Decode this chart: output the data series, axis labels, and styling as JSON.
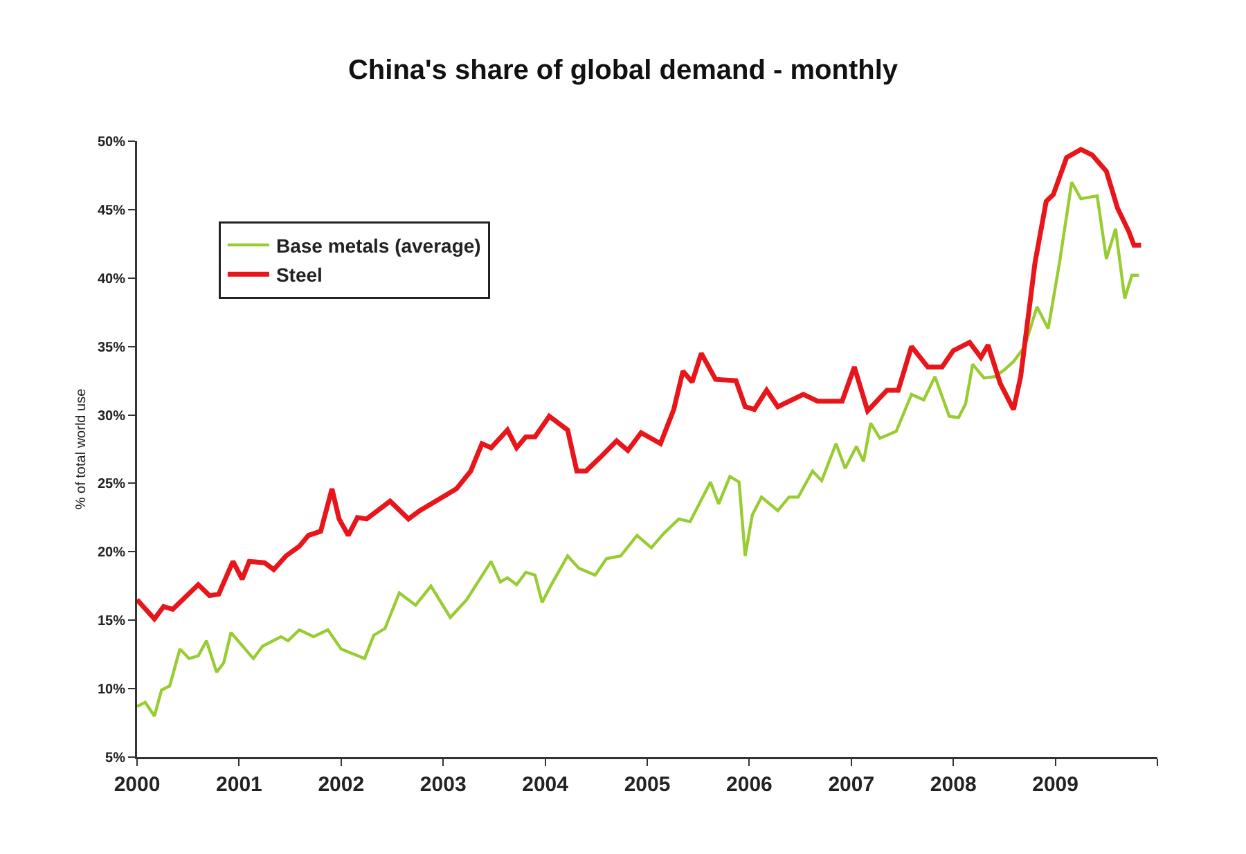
{
  "chart_data": {
    "type": "line",
    "title": "China's share of global demand - monthly",
    "ylabel": "% of total world use",
    "xlim": [
      2000,
      2010
    ],
    "xticks": [
      {
        "value": 2000,
        "label": "2000"
      },
      {
        "value": 2001,
        "label": "2001"
      },
      {
        "value": 2002,
        "label": "2002"
      },
      {
        "value": 2003,
        "label": "2003"
      },
      {
        "value": 2004,
        "label": "2004"
      },
      {
        "value": 2005,
        "label": "2005"
      },
      {
        "value": 2006,
        "label": "2006"
      },
      {
        "value": 2007,
        "label": "2007"
      },
      {
        "value": 2008,
        "label": "2008"
      },
      {
        "value": 2009,
        "label": "2009"
      },
      {
        "value": 2010,
        "label": null
      }
    ],
    "ylim": [
      5,
      50
    ],
    "yticks": [
      {
        "value": 5,
        "label": "5%"
      },
      {
        "value": 10,
        "label": "10%"
      },
      {
        "value": 15,
        "label": "15%"
      },
      {
        "value": 20,
        "label": "20%"
      },
      {
        "value": 25,
        "label": "25%"
      },
      {
        "value": 30,
        "label": "30%"
      },
      {
        "value": 35,
        "label": "35%"
      },
      {
        "value": 40,
        "label": "40%"
      },
      {
        "value": 45,
        "label": "45%"
      },
      {
        "value": 50,
        "label": "50%"
      }
    ],
    "grid": false,
    "legend": "top left",
    "series": [
      {
        "name": "Base metals (average)",
        "color": "#99cc33",
        "x": [
          2000.0,
          2000.08,
          2000.17,
          2000.24,
          2000.32,
          2000.42,
          2000.51,
          2000.6,
          2000.68,
          2000.78,
          2000.85,
          2000.92,
          2001.14,
          2001.23,
          2001.41,
          2001.48,
          2001.59,
          2001.73,
          2001.87,
          2002.0,
          2002.23,
          2002.32,
          2002.43,
          2002.57,
          2002.73,
          2002.88,
          2003.07,
          2003.23,
          2003.47,
          2003.56,
          2003.63,
          2003.72,
          2003.81,
          2003.9,
          2003.97,
          2004.06,
          2004.22,
          2004.33,
          2004.49,
          2004.6,
          2004.74,
          2004.9,
          2005.04,
          2005.17,
          2005.31,
          2005.42,
          2005.62,
          2005.7,
          2005.81,
          2005.9,
          2005.96,
          2006.03,
          2006.12,
          2006.28,
          2006.39,
          2006.48,
          2006.62,
          2006.71,
          2006.85,
          2006.94,
          2007.05,
          2007.12,
          2007.19,
          2007.28,
          2007.44,
          2007.59,
          2007.71,
          2007.82,
          2007.96,
          2008.05,
          2008.12,
          2008.19,
          2008.3,
          2008.41,
          2008.5,
          2008.59,
          2008.7,
          2008.82,
          2008.93,
          2009.04,
          2009.16,
          2009.25,
          2009.41,
          2009.5,
          2009.59,
          2009.68,
          2009.75,
          2009.82
        ],
        "values": [
          8.7,
          9.0,
          8.0,
          9.9,
          10.2,
          12.9,
          12.2,
          12.4,
          13.5,
          11.2,
          11.9,
          14.1,
          12.2,
          13.1,
          13.8,
          13.5,
          14.3,
          13.8,
          14.3,
          12.9,
          12.2,
          13.9,
          14.4,
          17.0,
          16.1,
          17.5,
          15.2,
          16.5,
          19.3,
          17.8,
          18.1,
          17.6,
          18.5,
          18.3,
          16.3,
          17.6,
          19.7,
          18.8,
          18.3,
          19.5,
          19.7,
          21.2,
          20.3,
          21.4,
          22.4,
          22.2,
          25.1,
          23.5,
          25.5,
          25.1,
          19.7,
          22.7,
          24.0,
          23.0,
          24.0,
          24.0,
          25.9,
          25.2,
          27.9,
          26.1,
          27.7,
          26.6,
          29.4,
          28.3,
          28.8,
          31.5,
          31.1,
          32.8,
          29.9,
          29.8,
          30.8,
          33.7,
          32.7,
          32.8,
          33.3,
          33.9,
          35.0,
          37.9,
          36.3,
          41.1,
          47.0,
          45.8,
          46.0,
          41.4,
          43.6,
          38.5,
          40.2,
          40.2
        ]
      },
      {
        "name": "Steel",
        "color": "#e8161b",
        "x": [
          2000.0,
          2000.17,
          2000.26,
          2000.35,
          2000.6,
          2000.71,
          2000.8,
          2000.94,
          2001.03,
          2001.1,
          2001.25,
          2001.34,
          2001.46,
          2001.59,
          2001.68,
          2001.8,
          2001.91,
          2001.98,
          2002.07,
          2002.16,
          2002.25,
          2002.48,
          2002.66,
          2002.77,
          2003.04,
          2003.13,
          2003.27,
          2003.38,
          2003.47,
          2003.63,
          2003.72,
          2003.81,
          2003.9,
          2004.04,
          2004.22,
          2004.31,
          2004.4,
          2004.54,
          2004.7,
          2004.81,
          2004.94,
          2005.13,
          2005.26,
          2005.35,
          2005.44,
          2005.53,
          2005.67,
          2005.87,
          2005.96,
          2006.05,
          2006.17,
          2006.28,
          2006.53,
          2006.67,
          2006.91,
          2007.03,
          2007.16,
          2007.35,
          2007.46,
          2007.59,
          2007.75,
          2007.89,
          2008.0,
          2008.16,
          2008.27,
          2008.34,
          2008.46,
          2008.59,
          2008.66,
          2008.8,
          2008.91,
          2008.98,
          2009.11,
          2009.25,
          2009.36,
          2009.5,
          2009.61,
          2009.72,
          2009.77,
          2009.84
        ],
        "values": [
          16.5,
          15.1,
          16.0,
          15.8,
          17.6,
          16.8,
          16.9,
          19.3,
          18.0,
          19.3,
          19.2,
          18.7,
          19.7,
          20.4,
          21.2,
          21.5,
          24.6,
          22.4,
          21.2,
          22.5,
          22.4,
          23.7,
          22.4,
          23.0,
          24.2,
          24.6,
          25.9,
          27.9,
          27.6,
          28.9,
          27.6,
          28.4,
          28.4,
          29.9,
          28.9,
          25.9,
          25.9,
          26.9,
          28.1,
          27.4,
          28.7,
          27.9,
          30.4,
          33.2,
          32.4,
          34.5,
          32.6,
          32.5,
          30.6,
          30.4,
          31.8,
          30.6,
          31.5,
          31.0,
          31.0,
          33.5,
          30.3,
          31.8,
          31.8,
          35.0,
          33.5,
          33.5,
          34.7,
          35.3,
          34.2,
          35.1,
          32.3,
          30.4,
          32.8,
          41.1,
          45.6,
          46.1,
          48.8,
          49.4,
          49.0,
          47.8,
          45.1,
          43.4,
          42.4,
          42.4
        ]
      }
    ]
  }
}
